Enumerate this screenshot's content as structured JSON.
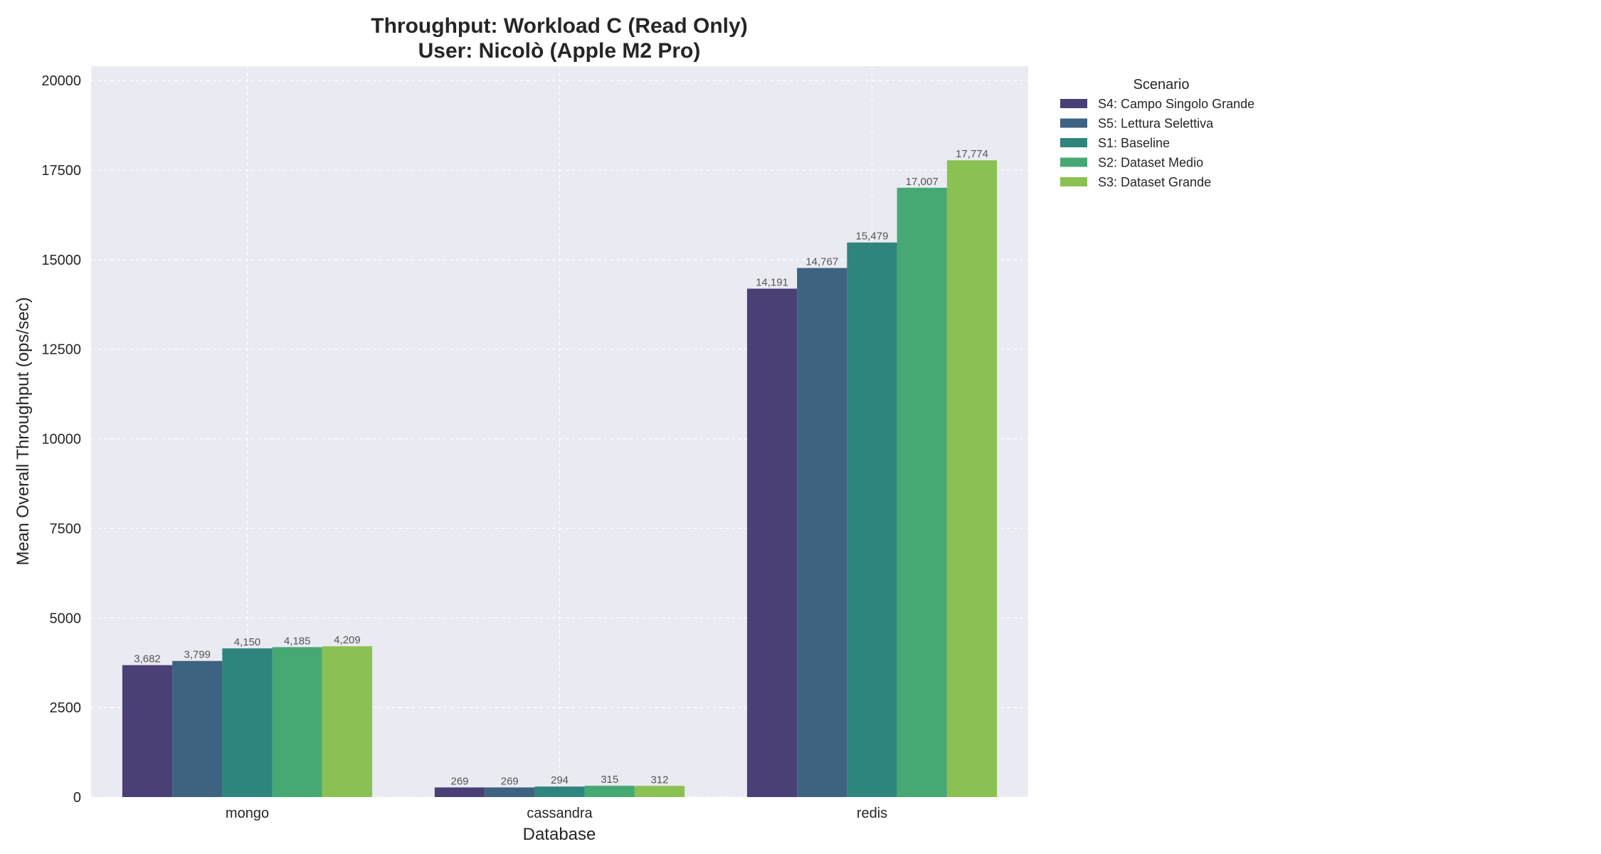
{
  "chart_data": {
    "type": "bar",
    "title": [
      "Throughput: Workload C (Read Only)",
      "User: Nicolò (Apple M2 Pro)"
    ],
    "xlabel": "Database",
    "ylabel": "Mean Overall Throughput (ops/sec)",
    "categories": [
      "mongo",
      "cassandra",
      "redis"
    ],
    "ylim": [
      0,
      20400
    ],
    "yticks": [
      0,
      2500,
      5000,
      7500,
      10000,
      12500,
      15000,
      17500,
      20000
    ],
    "grid": true,
    "legend": {
      "title": "Scenario",
      "placement": "outside-top-right"
    },
    "series": [
      {
        "name": "S4: Campo Singolo Grande",
        "color": "#4a4076",
        "values": [
          3682,
          269,
          14191
        ],
        "labels": [
          "3,682",
          "269",
          "14,191"
        ]
      },
      {
        "name": "S5: Lettura Selettiva",
        "color": "#3d6380",
        "values": [
          3799,
          269,
          14767
        ],
        "labels": [
          "3,799",
          "269",
          "14,767"
        ]
      },
      {
        "name": "S1: Baseline",
        "color": "#2f847d",
        "values": [
          4150,
          294,
          15479
        ],
        "labels": [
          "4,150",
          "294",
          "15,479"
        ]
      },
      {
        "name": "S2: Dataset Medio",
        "color": "#46a873",
        "values": [
          4185,
          315,
          17007
        ],
        "labels": [
          "4,185",
          "315",
          "17,007"
        ]
      },
      {
        "name": "S3: Dataset Grande",
        "color": "#8bc153",
        "values": [
          4209,
          312,
          17774
        ],
        "labels": [
          "4,209",
          "312",
          "17,774"
        ]
      }
    ]
  }
}
